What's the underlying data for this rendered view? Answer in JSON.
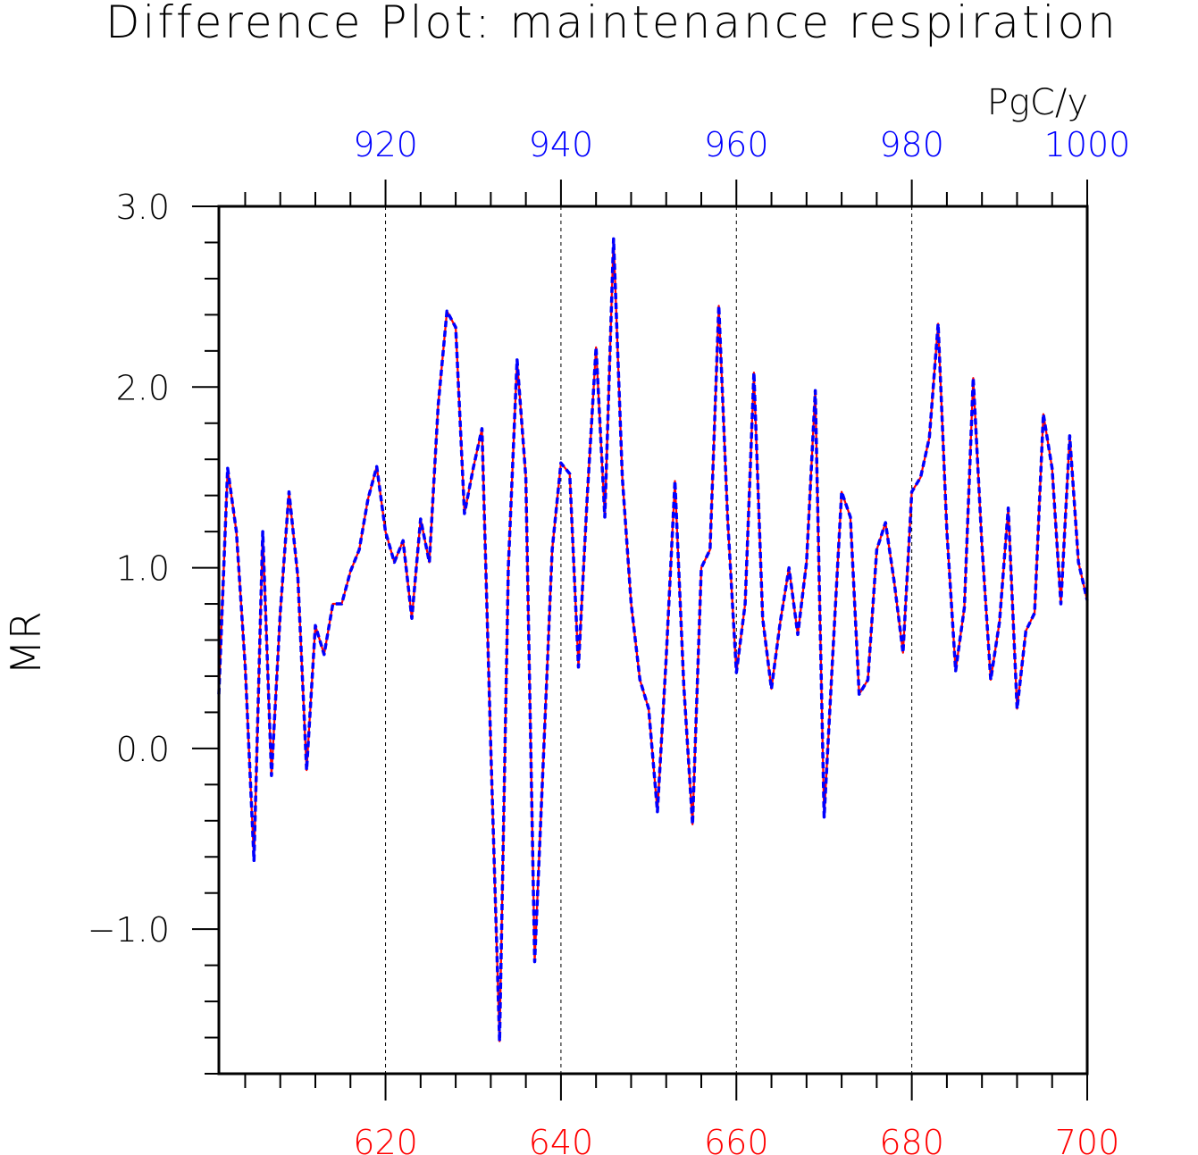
{
  "chart_data": {
    "type": "line",
    "title": "Difference Plot: maintenance respiration",
    "units": "PgC/y",
    "ylabel": "MR",
    "xlabel": "",
    "xlim": [
      601,
      700
    ],
    "ylim": [
      -1.8,
      3.0
    ],
    "yticks": [
      "−1.0",
      "0.0",
      "1.0",
      "2.0",
      "3.0"
    ],
    "ytick_values": [
      -1.0,
      0.0,
      1.0,
      2.0,
      3.0
    ],
    "x_bottom_ticks": [
      "620",
      "640",
      "660",
      "680",
      "700"
    ],
    "x_bottom_values": [
      620,
      640,
      660,
      680,
      700
    ],
    "x_top_ticks": [
      "920",
      "940",
      "960",
      "980",
      "1000"
    ],
    "x_top_offset": 300,
    "grid": "vertical dashed at labeled x ticks",
    "colors": {
      "bottom_axis": "#ff0000",
      "top_axis": "#0000ff",
      "axes": "#000000",
      "grid": "#000000"
    },
    "x": [
      601,
      602,
      603,
      604,
      605,
      606,
      607,
      608,
      609,
      610,
      611,
      612,
      613,
      614,
      615,
      616,
      617,
      618,
      619,
      620,
      621,
      622,
      623,
      624,
      625,
      626,
      627,
      628,
      629,
      630,
      631,
      632,
      633,
      634,
      635,
      636,
      637,
      638,
      639,
      640,
      641,
      642,
      643,
      644,
      645,
      646,
      647,
      648,
      649,
      650,
      651,
      652,
      653,
      654,
      655,
      656,
      657,
      658,
      659,
      660,
      661,
      662,
      663,
      664,
      665,
      666,
      667,
      668,
      669,
      670,
      671,
      672,
      673,
      674,
      675,
      676,
      677,
      678,
      679,
      680,
      681,
      682,
      683,
      684,
      685,
      686,
      687,
      688,
      689,
      690,
      691,
      692,
      693,
      694,
      695,
      696,
      697,
      698,
      699,
      700
    ],
    "series": [
      {
        "color": "#ff0000",
        "style": "solid",
        "values": [
          0.3,
          1.55,
          1.2,
          0.45,
          -0.62,
          1.2,
          -0.15,
          0.75,
          1.42,
          0.95,
          -0.12,
          0.68,
          0.52,
          0.8,
          0.8,
          0.98,
          1.1,
          1.38,
          1.56,
          1.2,
          1.03,
          1.15,
          0.72,
          1.27,
          1.03,
          1.9,
          2.42,
          2.33,
          1.3,
          1.55,
          1.77,
          0.0,
          -1.62,
          1.0,
          2.15,
          1.5,
          -1.18,
          -0.05,
          1.1,
          1.58,
          1.52,
          0.45,
          1.4,
          2.22,
          1.28,
          2.82,
          1.5,
          0.8,
          0.38,
          0.22,
          -0.35,
          0.5,
          1.48,
          0.35,
          -0.42,
          1.0,
          1.1,
          2.45,
          1.27,
          0.42,
          0.8,
          2.08,
          0.72,
          0.33,
          0.7,
          1.0,
          0.63,
          1.03,
          1.98,
          -0.38,
          0.53,
          1.42,
          1.28,
          0.3,
          0.38,
          1.1,
          1.25,
          0.92,
          0.53,
          1.42,
          1.5,
          1.72,
          2.35,
          1.2,
          0.43,
          0.78,
          2.05,
          1.12,
          0.38,
          0.7,
          1.33,
          0.22,
          0.65,
          0.75,
          1.85,
          1.55,
          0.8,
          1.73,
          1.03,
          0.82
        ]
      },
      {
        "color": "#0000ff",
        "style": "dashed",
        "values": [
          0.3,
          1.55,
          1.2,
          0.45,
          -0.62,
          1.2,
          -0.15,
          0.75,
          1.42,
          0.95,
          -0.12,
          0.68,
          0.52,
          0.8,
          0.8,
          0.98,
          1.1,
          1.38,
          1.56,
          1.2,
          1.03,
          1.15,
          0.72,
          1.27,
          1.03,
          1.9,
          2.42,
          2.33,
          1.3,
          1.55,
          1.77,
          0.0,
          -1.62,
          1.0,
          2.15,
          1.5,
          -1.18,
          -0.05,
          1.1,
          1.58,
          1.52,
          0.45,
          1.4,
          2.22,
          1.28,
          2.82,
          1.5,
          0.8,
          0.38,
          0.22,
          -0.35,
          0.5,
          1.48,
          0.35,
          -0.42,
          1.0,
          1.1,
          2.45,
          1.27,
          0.42,
          0.8,
          2.08,
          0.72,
          0.33,
          0.7,
          1.0,
          0.63,
          1.03,
          1.98,
          -0.38,
          0.53,
          1.42,
          1.28,
          0.3,
          0.38,
          1.1,
          1.25,
          0.92,
          0.53,
          1.42,
          1.5,
          1.72,
          2.35,
          1.2,
          0.43,
          0.78,
          2.05,
          1.12,
          0.38,
          0.7,
          1.33,
          0.22,
          0.65,
          0.75,
          1.85,
          1.55,
          0.8,
          1.73,
          1.03,
          0.82
        ]
      }
    ]
  }
}
